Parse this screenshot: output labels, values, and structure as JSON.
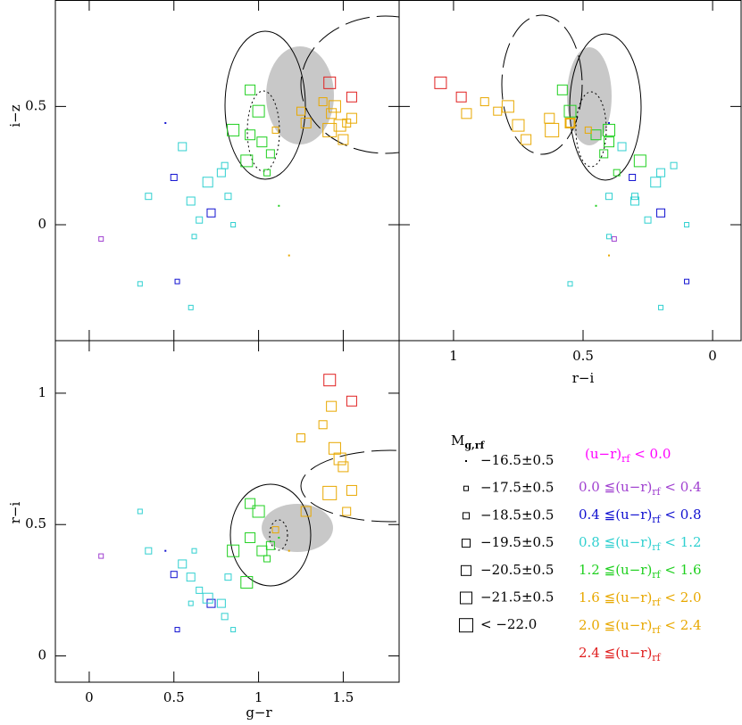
{
  "chart_data": [
    {
      "type": "scatter",
      "ylabel": "i−z",
      "xlim": [
        -0.2,
        1.83
      ],
      "ylim": [
        -0.49,
        0.95
      ],
      "xticks": [
        0,
        0.5,
        1,
        1.5
      ],
      "yticks": [
        0,
        0.5
      ],
      "xtick_labels": false,
      "ytick_labels": true,
      "series": [
        {
          "color": "#a040d0",
          "x": [
            0.07
          ],
          "y": [
            -0.06
          ],
          "mag": [
            -17.5
          ]
        },
        {
          "color": "#1010d0",
          "x": [
            0.45,
            0.5,
            0.72,
            0.52
          ],
          "y": [
            0.43,
            0.2,
            0.05,
            -0.24
          ],
          "mag": [
            -16.5,
            -18.5,
            -19.5,
            -17.5
          ]
        },
        {
          "color": "#30d0d0",
          "x": [
            0.3,
            0.35,
            0.55,
            0.6,
            0.65,
            0.7,
            0.78,
            0.8,
            0.82,
            0.62,
            0.85,
            0.6
          ],
          "y": [
            -0.25,
            0.12,
            0.33,
            0.1,
            0.02,
            0.18,
            0.22,
            0.25,
            0.12,
            -0.05,
            0,
            -0.35
          ],
          "mag": [
            -17.5,
            -18.5,
            -19.5,
            -19.5,
            -18.5,
            -20.5,
            -19.5,
            -18.5,
            -18.5,
            -17.5,
            -17.5,
            -17.5
          ]
        },
        {
          "color": "#20d020",
          "x": [
            0.95,
            1,
            0.95,
            1.02,
            1.07,
            0.93,
            1.05,
            0.85,
            1.12
          ],
          "y": [
            0.57,
            0.48,
            0.38,
            0.35,
            0.3,
            0.27,
            0.22,
            0.4,
            0.08
          ],
          "mag": [
            -20.5,
            -21.5,
            -20.5,
            -20.5,
            -19.5,
            -21.5,
            -18.5,
            -21.5,
            -16.5
          ]
        },
        {
          "color": "#e8a800",
          "x": [
            1.43,
            1.38,
            1.45,
            1.48,
            1.25,
            1.42,
            1.55,
            1.52,
            1.28,
            1.1,
            1.18,
            1.5
          ],
          "y": [
            0.47,
            0.52,
            0.5,
            0.42,
            0.48,
            0.4,
            0.45,
            0.43,
            0.43,
            0.4,
            -0.13,
            0.36
          ],
          "mag": [
            -20.5,
            -19.5,
            -21.5,
            -21.5,
            -19.5,
            -22,
            -20.5,
            -19.5,
            -20.5,
            -18.5,
            -16.5,
            -20.5
          ]
        },
        {
          "color": "#e02020",
          "x": [
            1.42,
            1.55
          ],
          "y": [
            0.6,
            0.54
          ],
          "mag": [
            -21.5,
            -20.5
          ]
        }
      ]
    },
    {
      "type": "scatter",
      "xlabel": "r−i",
      "xlim": [
        1.21,
        -0.11
      ],
      "ylim": [
        -0.49,
        0.95
      ],
      "xticks": [
        1,
        0.5,
        0
      ],
      "yticks": [
        0,
        0.5
      ],
      "xtick_labels": true,
      "ytick_labels": false,
      "series": [
        {
          "color": "#a040d0",
          "x": [
            0.38
          ],
          "y": [
            -0.06
          ],
          "mag": [
            -17.5
          ]
        },
        {
          "color": "#1010d0",
          "x": [
            0.4,
            0.31,
            0.2,
            0.1
          ],
          "y": [
            0.43,
            0.2,
            0.05,
            -0.24
          ],
          "mag": [
            -16.5,
            -18.5,
            -19.5,
            -17.5
          ]
        },
        {
          "color": "#30d0d0",
          "x": [
            0.55,
            0.4,
            0.35,
            0.3,
            0.25,
            0.22,
            0.2,
            0.15,
            0.3,
            0.4,
            0.1,
            0.2
          ],
          "y": [
            -0.25,
            0.12,
            0.33,
            0.1,
            0.02,
            0.18,
            0.22,
            0.25,
            0.12,
            -0.05,
            0,
            -0.35
          ],
          "mag": [
            -17.5,
            -18.5,
            -19.5,
            -19.5,
            -18.5,
            -20.5,
            -19.5,
            -18.5,
            -18.5,
            -17.5,
            -17.5,
            -17.5
          ]
        },
        {
          "color": "#20d020",
          "x": [
            0.58,
            0.55,
            0.45,
            0.4,
            0.42,
            0.28,
            0.37,
            0.4,
            0.45
          ],
          "y": [
            0.57,
            0.48,
            0.38,
            0.35,
            0.3,
            0.27,
            0.22,
            0.4,
            0.08
          ],
          "mag": [
            -20.5,
            -21.5,
            -20.5,
            -20.5,
            -19.5,
            -21.5,
            -18.5,
            -21.5,
            -16.5
          ]
        },
        {
          "color": "#e8a800",
          "x": [
            0.95,
            0.88,
            0.79,
            0.75,
            0.83,
            0.62,
            0.63,
            0.55,
            0.55,
            0.48,
            0.4,
            0.72
          ],
          "y": [
            0.47,
            0.52,
            0.5,
            0.42,
            0.48,
            0.4,
            0.45,
            0.43,
            0.43,
            0.4,
            -0.13,
            0.36
          ],
          "mag": [
            -20.5,
            -19.5,
            -21.5,
            -21.5,
            -19.5,
            -22,
            -20.5,
            -19.5,
            -20.5,
            -18.5,
            -16.5,
            -20.5
          ]
        },
        {
          "color": "#e02020",
          "x": [
            1.05,
            0.97
          ],
          "y": [
            0.6,
            0.54
          ],
          "mag": [
            -21.5,
            -20.5
          ]
        }
      ]
    },
    {
      "type": "scatter",
      "xlabel": "g−r",
      "ylabel": "r−i",
      "xlim": [
        -0.2,
        1.83
      ],
      "ylim": [
        -0.1,
        1.2
      ],
      "xticks": [
        0,
        0.5,
        1,
        1.5
      ],
      "yticks": [
        0,
        0.5,
        1
      ],
      "xtick_labels": true,
      "ytick_labels": true,
      "series": [
        {
          "color": "#a040d0",
          "x": [
            0.07
          ],
          "y": [
            0.38
          ],
          "mag": [
            -17.5
          ]
        },
        {
          "color": "#1010d0",
          "x": [
            0.45,
            0.5,
            0.72,
            0.52
          ],
          "y": [
            0.4,
            0.31,
            0.2,
            0.1
          ],
          "mag": [
            -16.5,
            -18.5,
            -19.5,
            -17.5
          ]
        },
        {
          "color": "#30d0d0",
          "x": [
            0.3,
            0.35,
            0.55,
            0.6,
            0.65,
            0.7,
            0.78,
            0.8,
            0.82,
            0.62,
            0.85,
            0.6
          ],
          "y": [
            0.55,
            0.4,
            0.35,
            0.3,
            0.25,
            0.22,
            0.2,
            0.15,
            0.3,
            0.4,
            0.1,
            0.2
          ],
          "mag": [
            -17.5,
            -18.5,
            -19.5,
            -19.5,
            -18.5,
            -20.5,
            -19.5,
            -18.5,
            -18.5,
            -17.5,
            -17.5,
            -17.5
          ]
        },
        {
          "color": "#20d020",
          "x": [
            0.95,
            1,
            0.95,
            1.02,
            1.07,
            0.93,
            1.05,
            0.85,
            1.12
          ],
          "y": [
            0.58,
            0.55,
            0.45,
            0.4,
            0.42,
            0.28,
            0.37,
            0.4,
            0.45
          ],
          "mag": [
            -20.5,
            -21.5,
            -20.5,
            -20.5,
            -19.5,
            -21.5,
            -18.5,
            -21.5,
            -16.5
          ]
        },
        {
          "color": "#e8a800",
          "x": [
            1.43,
            1.38,
            1.45,
            1.48,
            1.25,
            1.42,
            1.55,
            1.52,
            1.28,
            1.1,
            1.18,
            1.5
          ],
          "y": [
            0.95,
            0.88,
            0.79,
            0.75,
            0.83,
            0.62,
            0.63,
            0.55,
            0.55,
            0.48,
            0.4,
            0.72
          ],
          "mag": [
            -20.5,
            -19.5,
            -21.5,
            -21.5,
            -19.5,
            -22,
            -20.5,
            -19.5,
            -20.5,
            -18.5,
            -16.5,
            -20.5
          ]
        },
        {
          "color": "#e02020",
          "x": [
            1.42,
            1.55
          ],
          "y": [
            1.05,
            0.97
          ],
          "mag": [
            -21.5,
            -20.5
          ]
        }
      ]
    }
  ],
  "legend": {
    "title": "M",
    "title_sub": "g,rf",
    "sizes": [
      {
        "value": -16.5,
        "label": "−16.5±0.5"
      },
      {
        "value": -17.5,
        "label": "−17.5±0.5"
      },
      {
        "value": -18.5,
        "label": "−18.5±0.5"
      },
      {
        "value": -19.5,
        "label": "−19.5±0.5"
      },
      {
        "value": -20.5,
        "label": "−20.5±0.5"
      },
      {
        "value": -21.5,
        "label": "−21.5±0.5"
      },
      {
        "value": -22,
        "label": "<  −22.0"
      }
    ],
    "colors": [
      {
        "color": "#ff00ff",
        "pre": "(u−r)",
        "sub": "rf",
        "post": " < 0.0"
      },
      {
        "color": "#a040d0",
        "pre": "0.0 ≦(u−r)",
        "sub": "rf",
        "post": " < 0.4"
      },
      {
        "color": "#1010d0",
        "pre": "0.4 ≦(u−r)",
        "sub": "rf",
        "post": " < 0.8"
      },
      {
        "color": "#30d0d0",
        "pre": "0.8 ≦(u−r)",
        "sub": "rf",
        "post": " < 1.2"
      },
      {
        "color": "#20d020",
        "pre": "1.2 ≦(u−r)",
        "sub": "rf",
        "post": " < 1.6"
      },
      {
        "color": "#e8a800",
        "pre": "1.6 ≦(u−r)",
        "sub": "rf",
        "post": " < 2.0"
      },
      {
        "color": "#e8a800",
        "pre": "2.0 ≦(u−r)",
        "sub": "rf",
        "post": " < 2.4"
      },
      {
        "color": "#e02020",
        "pre": "2.4 ≦(u−r)",
        "sub": "rf"
      }
    ]
  }
}
